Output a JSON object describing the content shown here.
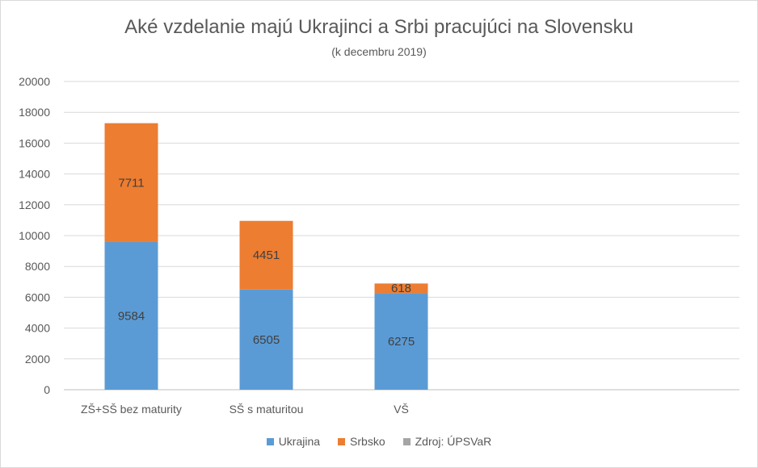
{
  "chart_data": {
    "type": "bar",
    "stacked": true,
    "title": "Aké vzdelanie majú Ukrajinci a Srbi pracujúci na Slovensku",
    "subtitle": "(k decembru 2019)",
    "categories": [
      "ZŠ+SŠ bez maturity",
      "SŠ s maturitou",
      "VŠ"
    ],
    "series": [
      {
        "name": "Ukrajina",
        "color": "#5b9bd5",
        "values": [
          9584,
          6505,
          6275
        ]
      },
      {
        "name": "Srbsko",
        "color": "#ed7d31",
        "values": [
          7711,
          4451,
          618
        ]
      },
      {
        "name": "Zdroj: ÚPSVaR",
        "color": "#a5a5a5",
        "values": [
          0,
          0,
          0
        ]
      }
    ],
    "ylim": [
      0,
      20000
    ],
    "yticks": [
      "0",
      "2000",
      "4000",
      "6000",
      "8000",
      "10000",
      "12000",
      "14000",
      "16000",
      "18000",
      "20000"
    ],
    "grid": true,
    "legend_position": "bottom"
  }
}
